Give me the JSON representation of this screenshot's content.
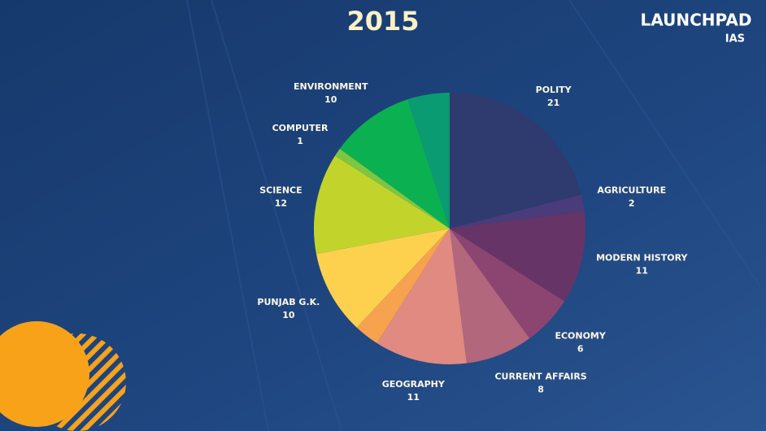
{
  "brand": {
    "name": "LAUNCHPAD",
    "sub": "IAS"
  },
  "chart_data": {
    "type": "pie",
    "title": "2015",
    "categories": [
      "POLITY",
      "AGRICULTURE",
      "MODERN HISTORY",
      "ECONOMY",
      "CURRENT AFFAIRS",
      "GEOGRAPHY",
      null,
      "PUNJAB G.K.",
      "SCIENCE",
      "COMPUTER",
      "ENVIRONMENT",
      null
    ],
    "values": [
      21,
      2,
      11,
      6,
      8,
      11,
      3,
      10,
      12,
      1,
      10,
      5
    ],
    "colors": [
      "#2f3a6e",
      "#4a3b7b",
      "#673467",
      "#8c4570",
      "#b3677c",
      "#e08a82",
      "#f6a24e",
      "#fdd14e",
      "#c2d42c",
      "#7dc641",
      "#0bb050",
      "#0b9b72"
    ]
  }
}
